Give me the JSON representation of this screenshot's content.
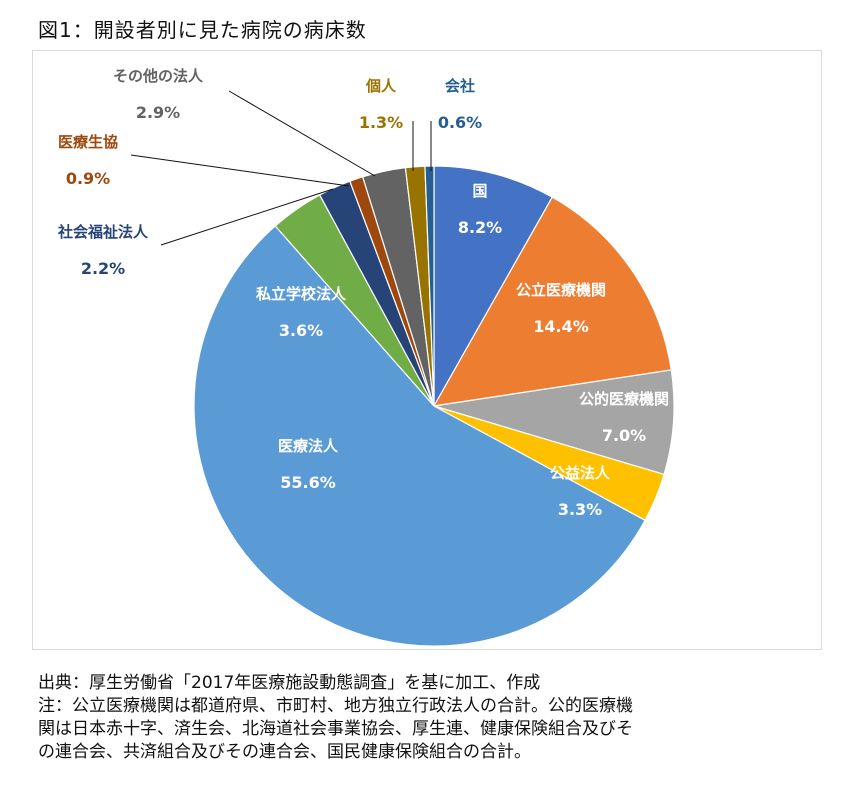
{
  "title": "図1：開設者別に見た病院の病床数",
  "chart_data": {
    "type": "pie",
    "title": "",
    "slices": [
      {
        "label": "国",
        "value": 8.2,
        "display": "8.2%",
        "color": "#4472c4",
        "label_color": "#ffffff",
        "outside": false
      },
      {
        "label": "公立医療機関",
        "value": 14.4,
        "display": "14.4%",
        "color": "#ed7d31",
        "label_color": "#ffffff",
        "outside": false
      },
      {
        "label": "公的医療機関",
        "value": 7.0,
        "display": "7.0%",
        "color": "#a5a5a5",
        "label_color": "#ffffff",
        "outside": false
      },
      {
        "label": "公益法人",
        "value": 3.3,
        "display": "3.3%",
        "color": "#ffc000",
        "label_color": "#ffffff",
        "outside": false
      },
      {
        "label": "医療法人",
        "value": 55.6,
        "display": "55.6%",
        "color": "#5b9bd5",
        "label_color": "#ffffff",
        "outside": false
      },
      {
        "label": "私立学校法人",
        "value": 3.6,
        "display": "3.6%",
        "color": "#70ad47",
        "label_color": "#ffffff",
        "outside": false
      },
      {
        "label": "社会福祉法人",
        "value": 2.2,
        "display": "2.2%",
        "color": "#264478",
        "label_color": "#264478",
        "outside": true
      },
      {
        "label": "医療生協",
        "value": 0.9,
        "display": "0.9%",
        "color": "#9e480e",
        "label_color": "#9e480e",
        "outside": true
      },
      {
        "label": "その他の法人",
        "value": 2.9,
        "display": "2.9%",
        "color": "#636363",
        "label_color": "#636363",
        "outside": true
      },
      {
        "label": "個人",
        "value": 1.3,
        "display": "1.3%",
        "color": "#997300",
        "label_color": "#997300",
        "outside": true
      },
      {
        "label": "会社",
        "value": 0.6,
        "display": "0.6%",
        "color": "#255e91",
        "label_color": "#255e91",
        "outside": true
      }
    ]
  },
  "notes": [
    "出典：厚生労働省「2017年医療施設動態調査」を基に加工、作成",
    "注：公立医療機関は都道府県、市町村、地方独立行政法人の合計。公的医療機",
    "関は日本赤十字、済生会、北海道社会事業協会、厚生連、健康保険組合及びそ",
    "の連合会、共済組合及びその連合会、国民健康保険組合の合計。"
  ]
}
